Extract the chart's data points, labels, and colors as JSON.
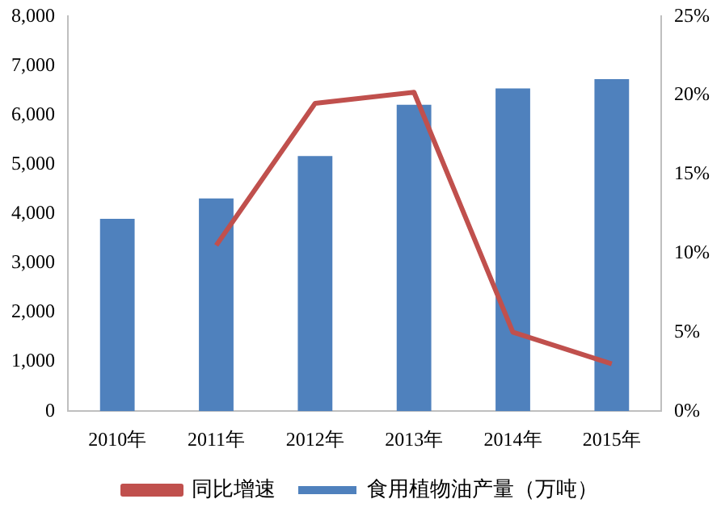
{
  "chart_data": {
    "type": "bar",
    "categories": [
      "2010年",
      "2011年",
      "2012年",
      "2013年",
      "2014年",
      "2015年"
    ],
    "series": [
      {
        "name": "食用植物油产量（万吨）",
        "color": "#4f81bd",
        "values": [
          3900,
          4310,
          5170,
          6210,
          6540,
          6730
        ]
      },
      {
        "name": "同比增速",
        "type": "line",
        "axis": "y2",
        "color": "#c0504d",
        "values": [
          null,
          10.5,
          19.5,
          20.2,
          5.0,
          3.0
        ]
      }
    ],
    "ylim": [
      0,
      8000
    ],
    "yticks": [
      {
        "value": 0,
        "label": "0"
      },
      {
        "value": 1000,
        "label": "1,000"
      },
      {
        "value": 2000,
        "label": "2,000"
      },
      {
        "value": 3000,
        "label": "3,000"
      },
      {
        "value": 4000,
        "label": "4,000"
      },
      {
        "value": 5000,
        "label": "5,000"
      },
      {
        "value": 6000,
        "label": "6,000"
      },
      {
        "value": 7000,
        "label": "7,000"
      },
      {
        "value": 8000,
        "label": "8,000"
      }
    ],
    "y2lim": [
      0,
      25
    ],
    "y2ticks": [
      {
        "value": 0,
        "label": "0%"
      },
      {
        "value": 5,
        "label": "5%"
      },
      {
        "value": 10,
        "label": "10%"
      },
      {
        "value": 15,
        "label": "15%"
      },
      {
        "value": 20,
        "label": "20%"
      },
      {
        "value": 25,
        "label": "25%"
      }
    ],
    "grid": false,
    "legend": "bottom",
    "marker": "none"
  }
}
